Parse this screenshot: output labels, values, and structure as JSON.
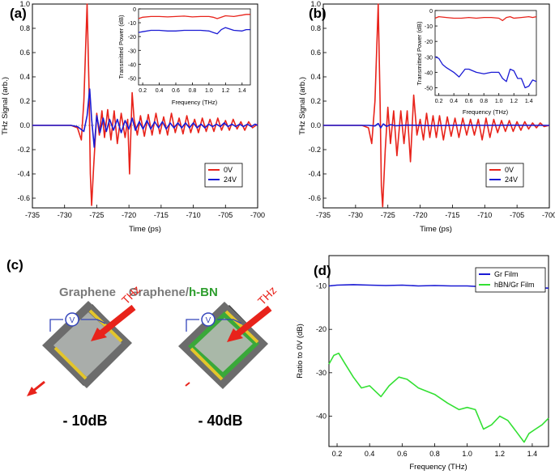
{
  "figure": {
    "panels": {
      "a": "(a)",
      "b": "(b)",
      "c": "(c)",
      "d": "(d)"
    },
    "panel_c": {
      "left_title": "Graphene",
      "right_title_prefix": "Graphene/",
      "right_title_suffix": "h-BN",
      "thz_label_left": "THz",
      "thz_label_right": "THz",
      "left_value": "- 10dB",
      "right_value": "- 40dB",
      "colors": {
        "graphene": "#7a7a7a",
        "hbn": "#2e9e2e",
        "thz": "#e8231b",
        "circuit": "#3344bb",
        "electrode": "#e3c52b"
      }
    }
  },
  "chart_data": [
    {
      "id": "a",
      "type": "line",
      "xlabel": "Time (ps)",
      "ylabel": "THz Signal (arb.)",
      "xlim": [
        -735,
        -700
      ],
      "ylim": [
        -0.68,
        1.0
      ],
      "xticks": [
        -735,
        -730,
        -725,
        -720,
        -715,
        -710,
        -705,
        -700
      ],
      "yticks": [
        1.0,
        0.8,
        0.6,
        0.4,
        0.2,
        0.0,
        -0.2,
        -0.4,
        -0.6
      ],
      "ytick_labels": [
        "1.0",
        "0.8",
        "0.6",
        "0.4",
        "0.2",
        "0.0",
        "-0.2",
        "-0.4",
        "-0.6"
      ],
      "legend": {
        "position": "bottom-right",
        "entries": [
          "0V",
          "24V"
        ]
      },
      "series": [
        {
          "name": "0V",
          "color": "#e8231b",
          "x": [
            -735,
            -729,
            -728,
            -727.4,
            -727,
            -726.5,
            -726.2,
            -726,
            -725.8,
            -725.5,
            -725,
            -724.6,
            -724.2,
            -723.8,
            -723.3,
            -722.8,
            -722.3,
            -721.8,
            -721.2,
            -720.6,
            -720.2,
            -719.9,
            -719.5,
            -719.2,
            -718.7,
            -718.2,
            -717.6,
            -717,
            -716.4,
            -715.8,
            -715.2,
            -714.6,
            -714,
            -713.4,
            -712.8,
            -712.2,
            -711.6,
            -711,
            -710.4,
            -709.8,
            -709.2,
            -708.6,
            -708,
            -707.4,
            -706.8,
            -706.2,
            -705.6,
            -705,
            -704.4,
            -703.8,
            -703.2,
            -702.6,
            -702,
            -701.4,
            -700.8,
            -700
          ],
          "y": [
            0,
            0,
            -0.02,
            -0.12,
            0.2,
            1.0,
            0.3,
            -0.4,
            -0.66,
            -0.35,
            0.1,
            -0.08,
            0.12,
            -0.1,
            0.13,
            -0.12,
            0.12,
            -0.15,
            0.1,
            -0.1,
            0.05,
            -0.4,
            0.27,
            0.05,
            -0.08,
            0.08,
            -0.09,
            0.09,
            -0.08,
            0.1,
            -0.07,
            0.07,
            -0.08,
            0.1,
            -0.06,
            0.06,
            -0.07,
            0.08,
            -0.06,
            0.05,
            -0.06,
            0.06,
            -0.05,
            0.05,
            -0.05,
            0.06,
            -0.04,
            0.04,
            -0.04,
            0.05,
            -0.03,
            0.03,
            -0.04,
            0.03,
            -0.02,
            0.01
          ]
        },
        {
          "name": "24V",
          "color": "#1a1ad4",
          "x": [
            -735,
            -729,
            -728,
            -727,
            -726.5,
            -726.1,
            -725.8,
            -725.4,
            -725,
            -724.5,
            -724,
            -723.5,
            -723,
            -722.4,
            -721.8,
            -721.2,
            -720.6,
            -720,
            -719.5,
            -719,
            -718.4,
            -717.8,
            -717.2,
            -716.6,
            -716,
            -715.4,
            -714.8,
            -714.2,
            -713.6,
            -713,
            -712.4,
            -711.8,
            -711.2,
            -710.6,
            -710,
            -709.4,
            -708.8,
            -708.2,
            -707.6,
            -707,
            -706.4,
            -705.8,
            -705.2,
            -704.6,
            -704,
            -703.4,
            -702.8,
            -702.2,
            -701.6,
            -701,
            -700.4,
            -700
          ],
          "y": [
            0,
            0,
            -0.01,
            -0.05,
            0.08,
            0.3,
            0.05,
            -0.18,
            0.08,
            -0.06,
            0.06,
            -0.05,
            0.05,
            -0.04,
            0.05,
            -0.06,
            0.04,
            -0.03,
            0.06,
            -0.04,
            0.03,
            -0.03,
            0.04,
            -0.03,
            0.03,
            -0.02,
            0.03,
            -0.03,
            0.02,
            -0.02,
            0.02,
            -0.02,
            0.02,
            -0.02,
            0.02,
            -0.02,
            0.01,
            -0.02,
            0.01,
            -0.01,
            0.01,
            -0.01,
            0.02,
            -0.01,
            0.01,
            -0.01,
            0.01,
            -0.01,
            0.01,
            -0.01,
            0.01,
            0
          ]
        }
      ],
      "inset": {
        "xlabel": "Frequency (THz)",
        "ylabel": "Transmitted Power (dB)",
        "xlim": [
          0.15,
          1.5
        ],
        "ylim": [
          -55,
          0
        ],
        "xticks": [
          0.2,
          0.4,
          0.6,
          0.8,
          1.0,
          1.2,
          1.4
        ],
        "xtick_labels": [
          "0.2",
          "0.4",
          "0.6",
          "0.8",
          "1.0",
          "1.2",
          "1.4"
        ],
        "yticks": [
          0,
          -10,
          -20,
          -30,
          -40,
          -50
        ],
        "ytick_labels": [
          "0",
          "-10",
          "-20",
          "-30",
          "-40",
          "-50"
        ],
        "series": [
          {
            "name": "0V",
            "color": "#e8231b",
            "x": [
              0.15,
              0.2,
              0.3,
              0.4,
              0.5,
              0.6,
              0.7,
              0.8,
              0.9,
              1.0,
              1.05,
              1.1,
              1.15,
              1.2,
              1.3,
              1.4,
              1.45,
              1.5
            ],
            "y": [
              -7,
              -6,
              -5.5,
              -5.5,
              -5.8,
              -5.5,
              -5.2,
              -5.8,
              -5.5,
              -5.5,
              -6,
              -7,
              -6,
              -5,
              -5.5,
              -4.5,
              -4,
              -4
            ]
          },
          {
            "name": "24V",
            "color": "#1a1ad4",
            "x": [
              0.15,
              0.2,
              0.3,
              0.4,
              0.5,
              0.6,
              0.7,
              0.8,
              0.9,
              1.0,
              1.05,
              1.1,
              1.15,
              1.2,
              1.3,
              1.4,
              1.45,
              1.5
            ],
            "y": [
              -17,
              -16.5,
              -15.5,
              -15.5,
              -16,
              -16,
              -15.5,
              -15.5,
              -15.5,
              -16,
              -17,
              -18,
              -15,
              -13.5,
              -15.5,
              -16,
              -15,
              -15
            ]
          }
        ]
      }
    },
    {
      "id": "b",
      "type": "line",
      "xlabel": "Time (ps)",
      "ylabel": "THz Signal (arb.)",
      "xlim": [
        -735,
        -700
      ],
      "ylim": [
        -0.68,
        1.0
      ],
      "xticks": [
        -735,
        -730,
        -725,
        -720,
        -715,
        -710,
        -705,
        -700
      ],
      "yticks": [
        1.0,
        0.8,
        0.6,
        0.4,
        0.2,
        0.0,
        -0.2,
        -0.4,
        -0.6
      ],
      "ytick_labels": [
        "1.0",
        "0.8",
        "0.6",
        "0.4",
        "0.2",
        "0.0",
        "-0.2",
        "-0.4",
        "-0.6"
      ],
      "legend": {
        "position": "bottom-right",
        "entries": [
          "0V",
          "24V"
        ]
      },
      "series": [
        {
          "name": "0V",
          "color": "#e8231b",
          "x": [
            -735,
            -729,
            -728,
            -727.5,
            -727,
            -726.5,
            -726.2,
            -726,
            -725.8,
            -725.4,
            -725,
            -724.6,
            -724.1,
            -723.6,
            -723,
            -722.5,
            -722,
            -721.5,
            -721,
            -720.5,
            -720,
            -719.5,
            -719,
            -718.5,
            -718,
            -717.5,
            -717,
            -716.4,
            -715.8,
            -715.2,
            -714.6,
            -714,
            -713.4,
            -712.8,
            -712.2,
            -711.6,
            -711,
            -710.4,
            -709.8,
            -709.2,
            -708.6,
            -708,
            -707.4,
            -706.8,
            -706.2,
            -705.6,
            -705,
            -704.4,
            -703.8,
            -703.2,
            -702.6,
            -702,
            -701.4,
            -700.8,
            -700
          ],
          "y": [
            0,
            0,
            -0.02,
            -0.15,
            0.2,
            1.0,
            0.2,
            -0.5,
            -0.67,
            -0.2,
            0.15,
            -0.15,
            0.12,
            -0.25,
            0.12,
            -0.15,
            0.12,
            -0.3,
            0.25,
            -0.08,
            0.05,
            -0.12,
            0.1,
            -0.1,
            0.08,
            -0.1,
            0.08,
            -0.12,
            0.07,
            -0.09,
            0.06,
            -0.1,
            0.06,
            -0.08,
            0.05,
            -0.08,
            0.05,
            -0.12,
            0.06,
            -0.1,
            0.05,
            -0.06,
            0.04,
            -0.05,
            0.04,
            -0.05,
            0.03,
            -0.04,
            0.03,
            -0.03,
            0.02,
            -0.02,
            0.02,
            -0.01,
            0
          ]
        },
        {
          "name": "24V",
          "color": "#1a1ad4",
          "x": [
            -735,
            -728,
            -727,
            -726.5,
            -726.1,
            -725.7,
            -725.2,
            -724.6,
            -723.8,
            -722,
            -718,
            -714,
            -710,
            -706,
            -702,
            -700
          ],
          "y": [
            0,
            0,
            -0.005,
            0.015,
            -0.02,
            0.012,
            -0.008,
            0.005,
            -0.003,
            0.002,
            -0.002,
            0.001,
            0,
            0.001,
            0,
            0
          ]
        }
      ],
      "inset": {
        "xlabel": "Frequency (THz)",
        "ylabel": "Transmitted Power (dB)",
        "xlim": [
          0.15,
          1.5
        ],
        "ylim": [
          -55,
          0
        ],
        "xticks": [
          0.2,
          0.4,
          0.6,
          0.8,
          1.0,
          1.2,
          1.4
        ],
        "xtick_labels": [
          "0.2",
          "0.4",
          "0.6",
          "0.8",
          "1.0",
          "1.2",
          "1.4"
        ],
        "yticks": [
          0,
          -10,
          -20,
          -30,
          -40,
          -50
        ],
        "ytick_labels": [
          "0",
          "-10",
          "-20",
          "-30",
          "-40",
          "-50"
        ],
        "series": [
          {
            "name": "0V",
            "color": "#e8231b",
            "x": [
              0.15,
              0.2,
              0.3,
              0.4,
              0.5,
              0.6,
              0.7,
              0.8,
              0.9,
              1.0,
              1.05,
              1.1,
              1.15,
              1.2,
              1.3,
              1.4,
              1.45,
              1.5
            ],
            "y": [
              -5,
              -4,
              -4.5,
              -5,
              -5,
              -4.5,
              -5,
              -4.5,
              -4.5,
              -5,
              -6.5,
              -4.5,
              -4,
              -5,
              -4.5,
              -4,
              -4.5,
              -4
            ]
          },
          {
            "name": "24V",
            "color": "#1a1ad4",
            "x": [
              0.15,
              0.2,
              0.25,
              0.3,
              0.4,
              0.47,
              0.55,
              0.6,
              0.7,
              0.8,
              0.9,
              1.0,
              1.05,
              1.1,
              1.15,
              1.2,
              1.25,
              1.3,
              1.35,
              1.4,
              1.45,
              1.5
            ],
            "y": [
              -30,
              -31,
              -35,
              -37,
              -40,
              -43,
              -38,
              -38,
              -40,
              -41,
              -40,
              -40,
              -44,
              -46,
              -38,
              -39,
              -44,
              -44,
              -50,
              -49,
              -45,
              -46
            ]
          }
        ]
      }
    },
    {
      "id": "d",
      "type": "line",
      "xlabel": "Frequency (THz)",
      "ylabel": "Ratio to 0V (dB)",
      "xlim": [
        0.15,
        1.5
      ],
      "ylim": [
        -47,
        -3
      ],
      "xticks": [
        0.2,
        0.4,
        0.6,
        0.8,
        1.0,
        1.2,
        1.4
      ],
      "xtick_labels": [
        "0.2",
        "0.4",
        "0.6",
        "0.8",
        "1.0",
        "1.2",
        "1.4"
      ],
      "yticks": [
        -10,
        -20,
        -30,
        -40
      ],
      "ytick_labels": [
        "-10",
        "-20",
        "-30",
        "-40"
      ],
      "legend": {
        "position": "top-right",
        "entries": [
          "Gr Film",
          "hBN/Gr Film"
        ]
      },
      "series": [
        {
          "name": "Gr Film",
          "color": "#1a1ad4",
          "x": [
            0.15,
            0.2,
            0.3,
            0.4,
            0.5,
            0.6,
            0.7,
            0.8,
            0.9,
            1.0,
            1.1,
            1.2,
            1.3,
            1.4,
            1.5
          ],
          "y": [
            -10,
            -9.8,
            -9.7,
            -9.8,
            -9.9,
            -9.8,
            -10,
            -9.9,
            -10,
            -10,
            -10.2,
            -10.1,
            -10.3,
            -10.4,
            -10.5
          ]
        },
        {
          "name": "hBN/Gr Film",
          "color": "#33e033",
          "x": [
            0.15,
            0.18,
            0.21,
            0.25,
            0.3,
            0.35,
            0.4,
            0.47,
            0.52,
            0.58,
            0.63,
            0.7,
            0.8,
            0.88,
            0.95,
            1.0,
            1.05,
            1.1,
            1.15,
            1.2,
            1.25,
            1.3,
            1.35,
            1.38,
            1.42,
            1.46,
            1.5
          ],
          "y": [
            -28,
            -26,
            -25.5,
            -28,
            -31,
            -33.5,
            -33,
            -35.5,
            -33,
            -31,
            -31.5,
            -33.5,
            -35,
            -37,
            -38.5,
            -38,
            -38.5,
            -43,
            -42,
            -40,
            -41,
            -43.5,
            -46,
            -44,
            -43,
            -42,
            -40.5
          ]
        }
      ]
    }
  ]
}
